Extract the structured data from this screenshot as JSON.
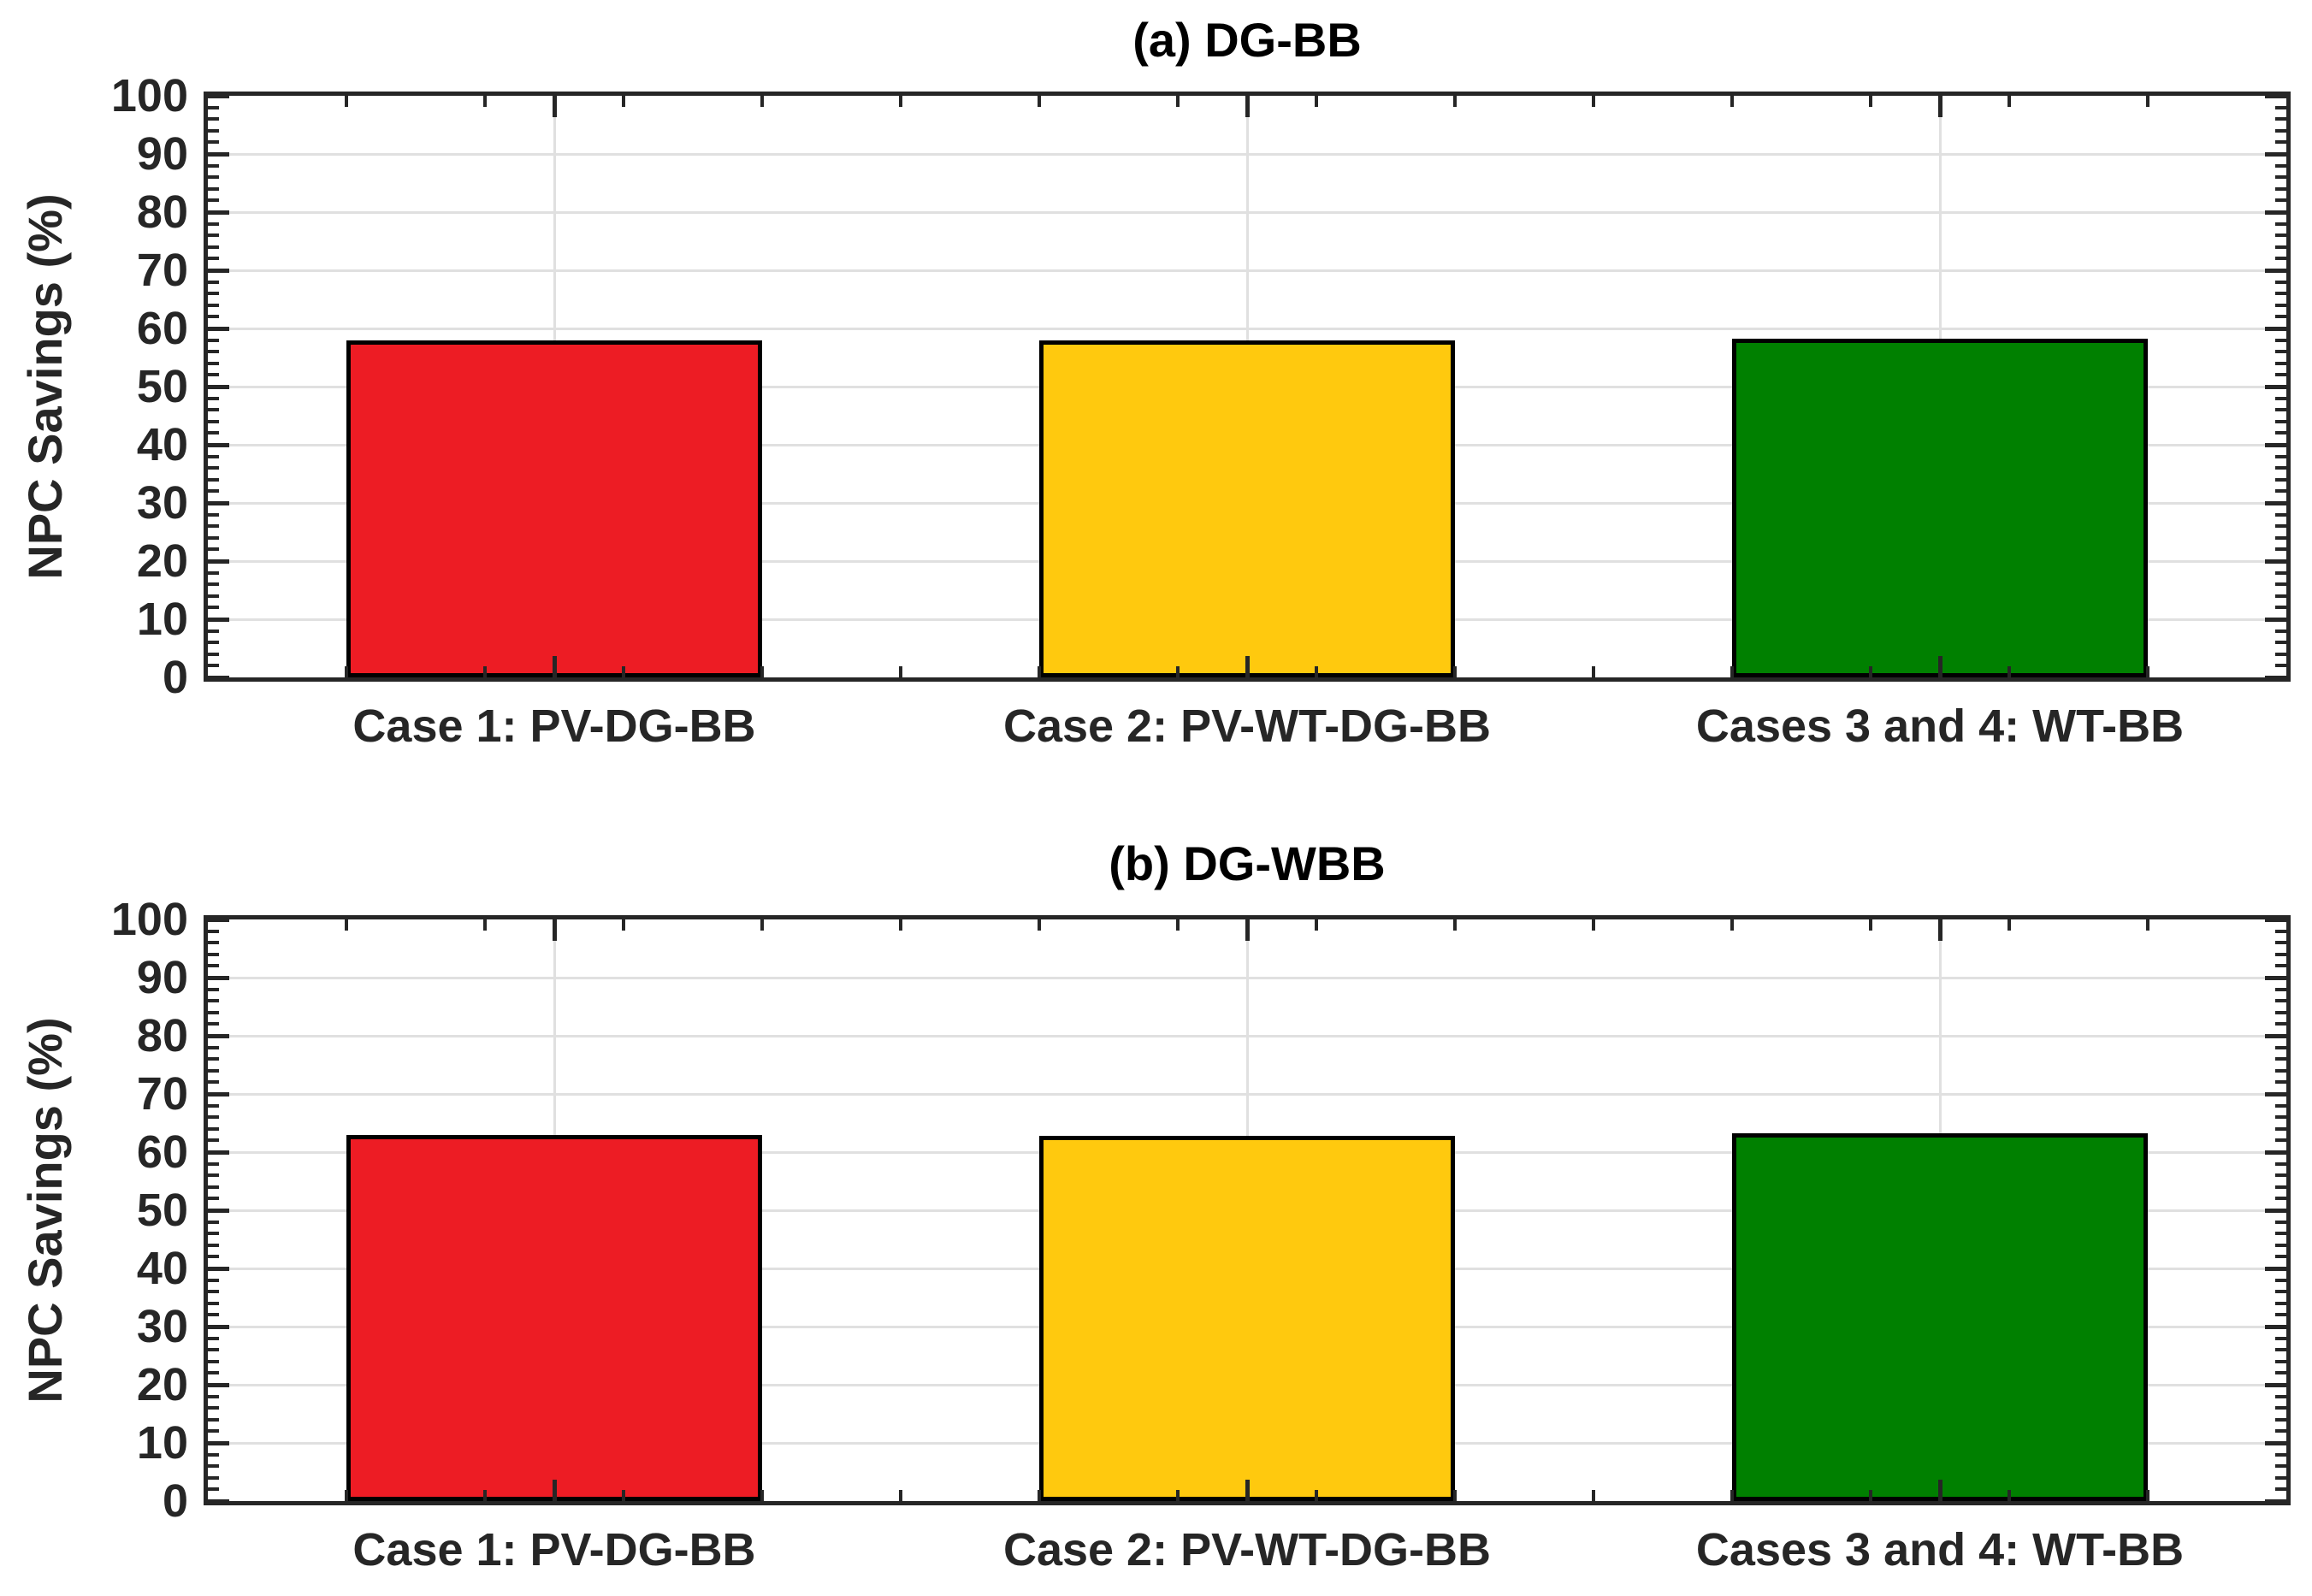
{
  "figure": {
    "background": "#ffffff",
    "axis_color": "#262626",
    "grid_color": "#e0e0e0",
    "text_color": "#262626",
    "title_color": "#000000"
  },
  "chart_data": [
    {
      "type": "bar",
      "title": "(a) DG-BB",
      "ylabel": "NPC Savings (%)",
      "categories": [
        "Case 1: PV-DG-BB",
        "Case 2: PV-WT-DG-BB",
        "Cases 3 and 4: WT-BB"
      ],
      "values": [
        58.0,
        57.9,
        58.3
      ],
      "bar_colors": [
        "#ED1C24",
        "#FFC90E",
        "#008000"
      ],
      "ylim": [
        0,
        100
      ],
      "yticks": [
        0,
        10,
        20,
        30,
        40,
        50,
        60,
        70,
        80,
        90,
        100
      ],
      "ytick_labels": [
        "0",
        "10",
        "20",
        "30",
        "40",
        "50",
        "60",
        "70",
        "80",
        "90",
        "100"
      ],
      "y_minor_step": 2,
      "x_minor_step": 0.2,
      "grid": true,
      "legend": "none",
      "box": true
    },
    {
      "type": "bar",
      "title": "(b) DG-WBB",
      "ylabel": "NPC Savings (%)",
      "categories": [
        "Case 1: PV-DG-BB",
        "Case 2: PV-WT-DG-BB",
        "Cases 3 and 4: WT-BB"
      ],
      "values": [
        63.0,
        62.8,
        63.2
      ],
      "bar_colors": [
        "#ED1C24",
        "#FFC90E",
        "#008000"
      ],
      "ylim": [
        0,
        100
      ],
      "yticks": [
        0,
        10,
        20,
        30,
        40,
        50,
        60,
        70,
        80,
        90,
        100
      ],
      "ytick_labels": [
        "0",
        "10",
        "20",
        "30",
        "40",
        "50",
        "60",
        "70",
        "80",
        "90",
        "100"
      ],
      "y_minor_step": 2,
      "x_minor_step": 0.2,
      "grid": true,
      "legend": "none",
      "box": true
    }
  ]
}
